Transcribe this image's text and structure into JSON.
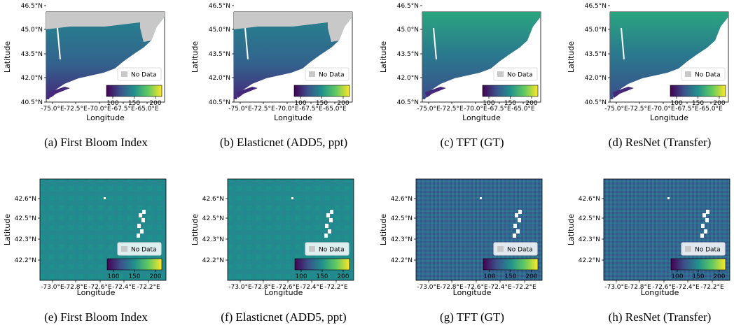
{
  "rows": [
    {
      "xlabel": "Longitude",
      "ylabel": "Latitude",
      "xticks": [
        "-75.0°E",
        "-72.5°E",
        "-70.0°E",
        "-67.5°E",
        "-65.0°E"
      ],
      "yticks": [
        "46.5°N",
        "45.0°N",
        "43.5°N",
        "42.0°N",
        "40.5°N"
      ],
      "legend": "No Data",
      "colorbar_ticks": [
        "100",
        "150",
        "200"
      ],
      "panels": [
        {
          "caption": "(a)  First Bloom Index"
        },
        {
          "caption": "(b)  Elasticnet (ADD5, ppt)"
        },
        {
          "caption": "(c)  TFT (GT)"
        },
        {
          "caption": "(d)  ResNet (Transfer)"
        }
      ]
    },
    {
      "xlabel": "Longitude",
      "ylabel": "Latitude",
      "xticks": [
        "-73.0°E",
        "-72.8°E",
        "-72.6°E",
        "-72.4°E",
        "-72.2°E"
      ],
      "yticks": [
        "42.6°N",
        "42.5°N",
        "42.3°N",
        "42.2°N"
      ],
      "legend": "No Data",
      "colorbar_ticks": [
        "100",
        "150",
        "200"
      ],
      "panels": [
        {
          "caption": "(e)  First Bloom Index"
        },
        {
          "caption": "(f)  Elasticnet (ADD5, ppt)"
        },
        {
          "caption": "(g)  TFT (GT)"
        },
        {
          "caption": "(h)  ResNet (Transfer)"
        }
      ]
    }
  ]
}
